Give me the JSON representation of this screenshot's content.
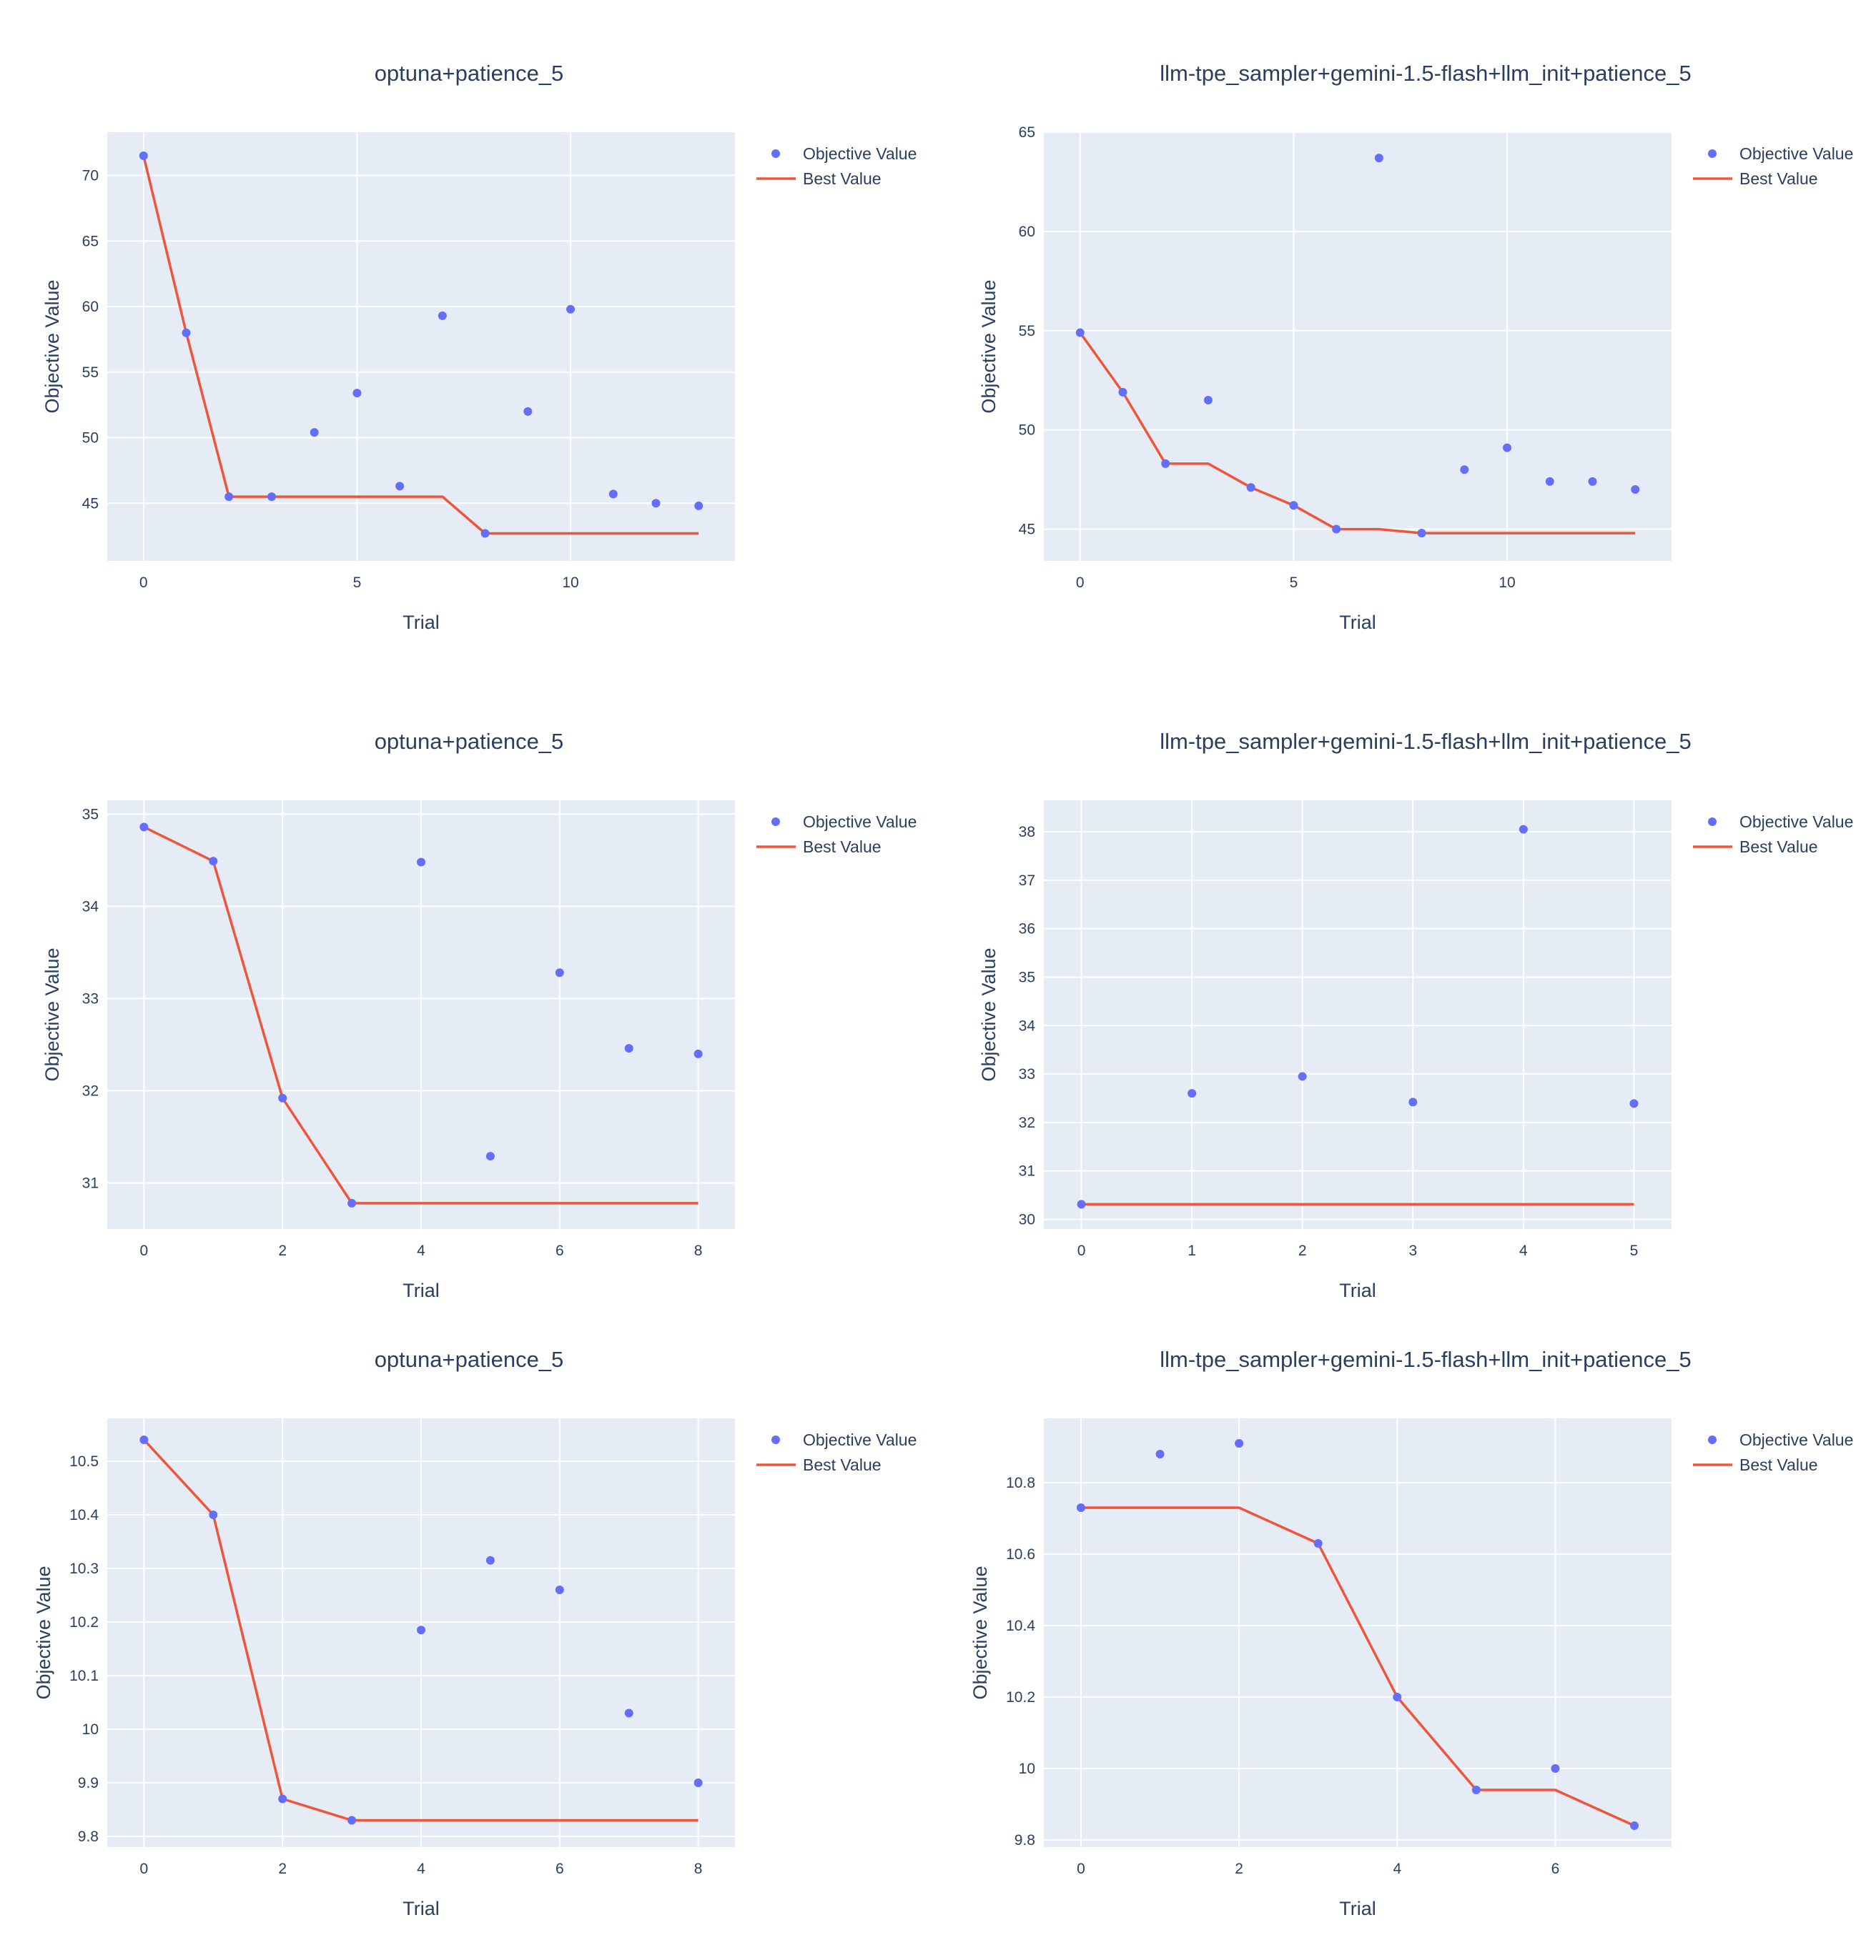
{
  "legend": {
    "objective": "Objective Value",
    "best": "Best Value"
  },
  "colors": {
    "objective": "#636efa",
    "best": "#ef553b",
    "plot_bg": "#e5ecf6",
    "grid": "#ffffff",
    "text": "#2a3f5f"
  },
  "chart_data": [
    {
      "type": "scatter+line",
      "title": "optuna+patience_5",
      "xlabel": "Trial",
      "ylabel": "Objective Value",
      "xlim": [
        -0.85,
        13.85
      ],
      "ylim": [
        40.6,
        73.3
      ],
      "xticks": [
        0,
        5,
        10
      ],
      "xtick_labels": [
        "0",
        "5",
        "10"
      ],
      "yticks": [
        45,
        50,
        55,
        60,
        65,
        70
      ],
      "ytick_labels": [
        "45",
        "50",
        "55",
        "60",
        "65",
        "70"
      ],
      "x": [
        0,
        1,
        2,
        3,
        4,
        5,
        6,
        7,
        8,
        9,
        10,
        11,
        12,
        13
      ],
      "objective": [
        71.5,
        58.0,
        45.5,
        45.5,
        50.4,
        53.4,
        46.3,
        59.3,
        42.7,
        52.0,
        59.8,
        45.7,
        45.0,
        44.8
      ],
      "best": [
        71.5,
        58.0,
        45.5,
        45.5,
        45.5,
        45.5,
        45.5,
        45.5,
        42.7,
        42.7,
        42.7,
        42.7,
        42.7,
        42.7
      ]
    },
    {
      "type": "scatter+line",
      "title": "llm-tpe_sampler+gemini-1.5-flash+llm_init+patience_5",
      "xlabel": "Trial",
      "ylabel": "Objective Value",
      "xlim": [
        -0.85,
        13.85
      ],
      "ylim": [
        43.4,
        65.0
      ],
      "xticks": [
        0,
        5,
        10
      ],
      "xtick_labels": [
        "0",
        "5",
        "10"
      ],
      "yticks": [
        45,
        50,
        55,
        60,
        65
      ],
      "ytick_labels": [
        "45",
        "50",
        "55",
        "60",
        "65"
      ],
      "x": [
        0,
        1,
        2,
        3,
        4,
        5,
        6,
        7,
        8,
        9,
        10,
        11,
        12,
        13
      ],
      "objective": [
        54.9,
        51.9,
        48.3,
        51.5,
        47.1,
        46.2,
        45.0,
        63.7,
        44.8,
        48.0,
        49.1,
        47.4,
        47.4,
        47.0
      ],
      "best": [
        54.9,
        51.9,
        48.3,
        48.3,
        47.1,
        46.2,
        45.0,
        45.0,
        44.8,
        44.8,
        44.8,
        44.8,
        44.8,
        44.8
      ]
    },
    {
      "type": "scatter+line",
      "title": "optuna+patience_5",
      "xlabel": "Trial",
      "ylabel": "Objective Value",
      "xlim": [
        -0.53,
        8.53
      ],
      "ylim": [
        30.5,
        35.15
      ],
      "xticks": [
        0,
        2,
        4,
        6,
        8
      ],
      "xtick_labels": [
        "0",
        "2",
        "4",
        "6",
        "8"
      ],
      "yticks": [
        31,
        32,
        33,
        34,
        35
      ],
      "ytick_labels": [
        "31",
        "32",
        "33",
        "34",
        "35"
      ],
      "x": [
        0,
        1,
        2,
        3,
        4,
        5,
        6,
        7,
        8
      ],
      "objective": [
        34.86,
        34.49,
        31.92,
        30.78,
        34.48,
        31.29,
        33.28,
        32.46,
        32.4
      ],
      "best": [
        34.86,
        34.49,
        31.92,
        30.78,
        30.78,
        30.78,
        30.78,
        30.78,
        30.78
      ]
    },
    {
      "type": "scatter+line",
      "title": "llm-tpe_sampler+gemini-1.5-flash+llm_init+patience_5",
      "xlabel": "Trial",
      "ylabel": "Objective Value",
      "xlim": [
        -0.34,
        5.34
      ],
      "ylim": [
        29.8,
        38.65
      ],
      "xticks": [
        0,
        1,
        2,
        3,
        4,
        5
      ],
      "xtick_labels": [
        "0",
        "1",
        "2",
        "3",
        "4",
        "5"
      ],
      "yticks": [
        30,
        31,
        32,
        33,
        34,
        35,
        36,
        37,
        38
      ],
      "ytick_labels": [
        "30",
        "31",
        "32",
        "33",
        "34",
        "35",
        "36",
        "37",
        "38"
      ],
      "x": [
        0,
        1,
        2,
        3,
        4,
        5
      ],
      "objective": [
        30.31,
        32.6,
        32.95,
        32.42,
        38.05,
        32.39
      ],
      "best": [
        30.31,
        30.31,
        30.31,
        30.31,
        30.31,
        30.31
      ]
    },
    {
      "type": "scatter+line",
      "title": "optuna+patience_5",
      "xlabel": "Trial",
      "ylabel": "Objective Value",
      "xlim": [
        -0.53,
        8.53
      ],
      "ylim": [
        9.78,
        10.58
      ],
      "xticks": [
        0,
        2,
        4,
        6,
        8
      ],
      "xtick_labels": [
        "0",
        "2",
        "4",
        "6",
        "8"
      ],
      "yticks": [
        9.8,
        9.9,
        10.0,
        10.1,
        10.2,
        10.3,
        10.4,
        10.5
      ],
      "ytick_labels": [
        "9.8",
        "9.9",
        "10",
        "10.1",
        "10.2",
        "10.3",
        "10.4",
        "10.5"
      ],
      "x": [
        0,
        1,
        2,
        3,
        4,
        5,
        6,
        7,
        8
      ],
      "objective": [
        10.54,
        10.4,
        9.87,
        9.83,
        10.185,
        10.315,
        10.26,
        10.03,
        9.9
      ],
      "best": [
        10.54,
        10.4,
        9.87,
        9.83,
        9.83,
        9.83,
        9.83,
        9.83,
        9.83
      ]
    },
    {
      "type": "scatter+line",
      "title": "llm-tpe_sampler+gemini-1.5-flash+llm_init+patience_5",
      "xlabel": "Trial",
      "ylabel": "Objective Value",
      "xlim": [
        -0.47,
        7.47
      ],
      "ylim": [
        9.78,
        10.98
      ],
      "xticks": [
        0,
        2,
        4,
        6
      ],
      "xtick_labels": [
        "0",
        "2",
        "4",
        "6"
      ],
      "yticks": [
        9.8,
        10.0,
        10.2,
        10.4,
        10.6,
        10.8
      ],
      "ytick_labels": [
        "9.8",
        "10",
        "10.2",
        "10.4",
        "10.6",
        "10.8"
      ],
      "x": [
        0,
        1,
        2,
        3,
        4,
        5,
        6,
        7
      ],
      "objective": [
        10.73,
        10.88,
        10.91,
        10.63,
        10.2,
        9.94,
        10.0,
        9.84
      ],
      "best": [
        10.73,
        10.73,
        10.73,
        10.63,
        10.2,
        9.94,
        9.94,
        9.84
      ]
    }
  ]
}
